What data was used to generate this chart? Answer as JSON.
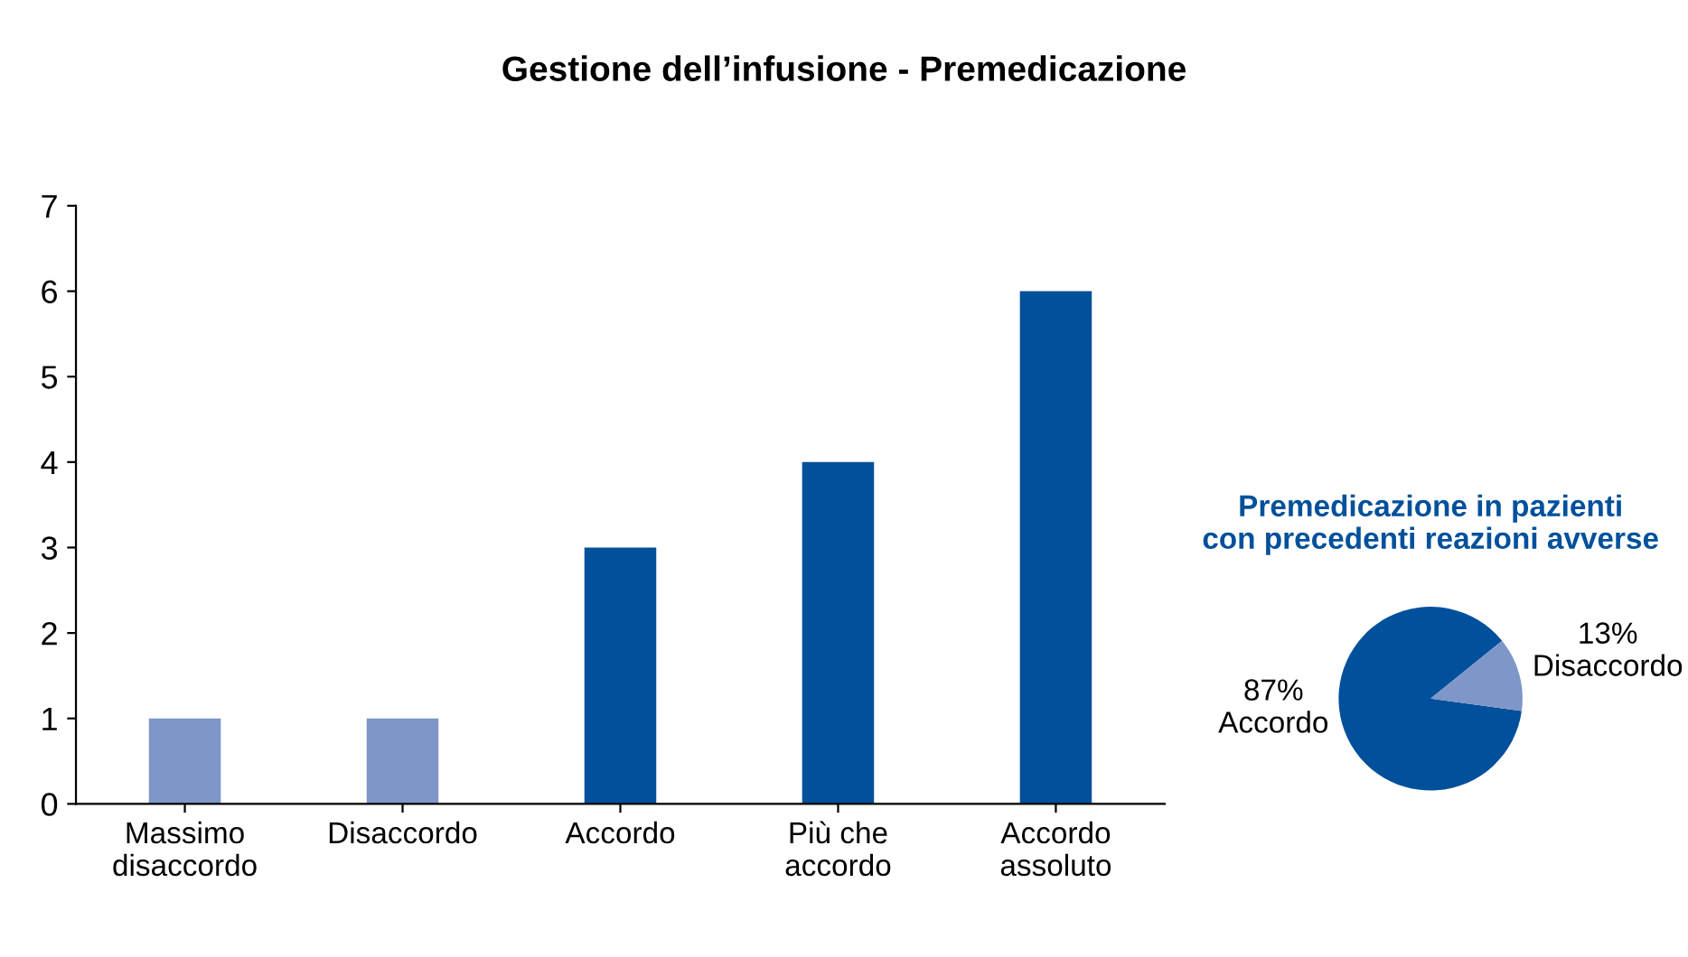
{
  "chart_data": [
    {
      "type": "bar",
      "title": "Gestione dell’infusione - Premedicazione",
      "categories": [
        "Massimo\ndisaccordo",
        "Disaccordo",
        "Accordo",
        "Più che\naccordo",
        "Accordo\nassoluto"
      ],
      "values": [
        1,
        1,
        3,
        4,
        6
      ],
      "colors": [
        "#7f96c8",
        "#7f96c8",
        "#00509b",
        "#00509b",
        "#00509b"
      ],
      "ylim": [
        0,
        7
      ],
      "yticks": [
        0,
        1,
        2,
        3,
        4,
        5,
        6,
        7
      ],
      "grid": false,
      "legend": false
    },
    {
      "type": "pie",
      "title": "Premedicazione in pazienti\ncon precedenti reazioni avverse",
      "categories": [
        "Accordo",
        "Disaccordo"
      ],
      "values": [
        87,
        13
      ],
      "value_labels": [
        "87%",
        "13%"
      ],
      "colors": [
        "#00509b",
        "#7f96c8"
      ]
    }
  ]
}
